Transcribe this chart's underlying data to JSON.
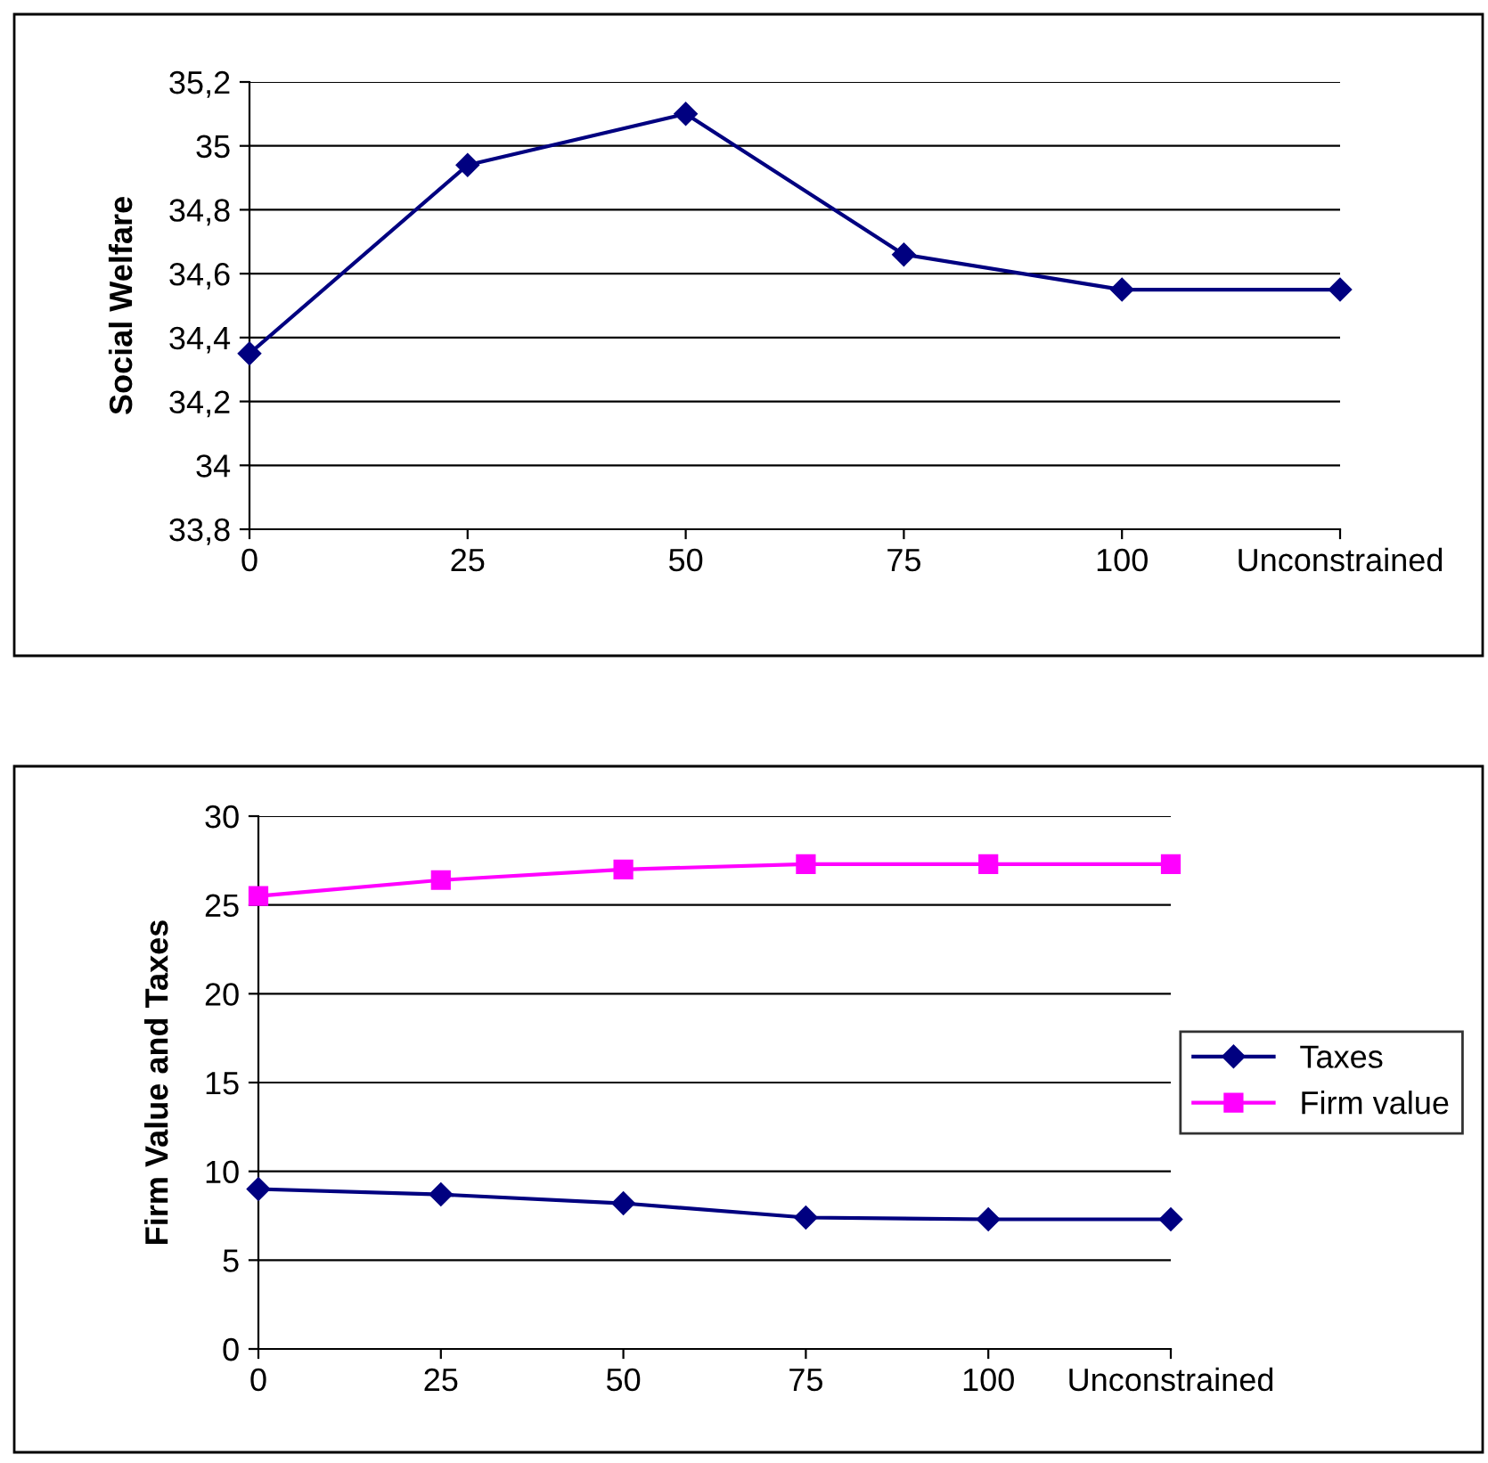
{
  "chart_data": [
    {
      "type": "line",
      "ylabel": "Social Welfare",
      "categories": [
        "0",
        "25",
        "50",
        "75",
        "100",
        "Unconstrained"
      ],
      "series": [
        {
          "color": "#000080",
          "marker": "diamond",
          "values": [
            34.35,
            34.94,
            35.1,
            34.66,
            34.55,
            34.55
          ]
        }
      ],
      "ylim": [
        33.8,
        35.2
      ],
      "yticks": [
        {
          "value": 33.8,
          "label": "33,8"
        },
        {
          "value": 34,
          "label": "34"
        },
        {
          "value": 34.2,
          "label": "34,2"
        },
        {
          "value": 34.4,
          "label": "34,4"
        },
        {
          "value": 34.6,
          "label": "34,6"
        },
        {
          "value": 34.8,
          "label": "34,8"
        },
        {
          "value": 35,
          "label": "35"
        },
        {
          "value": 35.2,
          "label": "35,2"
        }
      ],
      "grid": "y",
      "legend": false
    },
    {
      "type": "line",
      "ylabel": "Firm Value and Taxes",
      "categories": [
        "0",
        "25",
        "50",
        "75",
        "100",
        "Unconstrained"
      ],
      "series": [
        {
          "name": "Taxes",
          "color": "#000080",
          "marker": "diamond",
          "values": [
            9.0,
            8.7,
            8.2,
            7.4,
            7.3,
            7.3
          ]
        },
        {
          "name": "Firm value",
          "color": "#ff00ff",
          "marker": "square",
          "values": [
            25.5,
            26.4,
            27.0,
            27.3,
            27.3,
            27.3
          ]
        }
      ],
      "ylim": [
        0,
        30
      ],
      "yticks": [
        0,
        5,
        10,
        15,
        20,
        25,
        30
      ],
      "grid": "y",
      "legend": "right"
    }
  ]
}
